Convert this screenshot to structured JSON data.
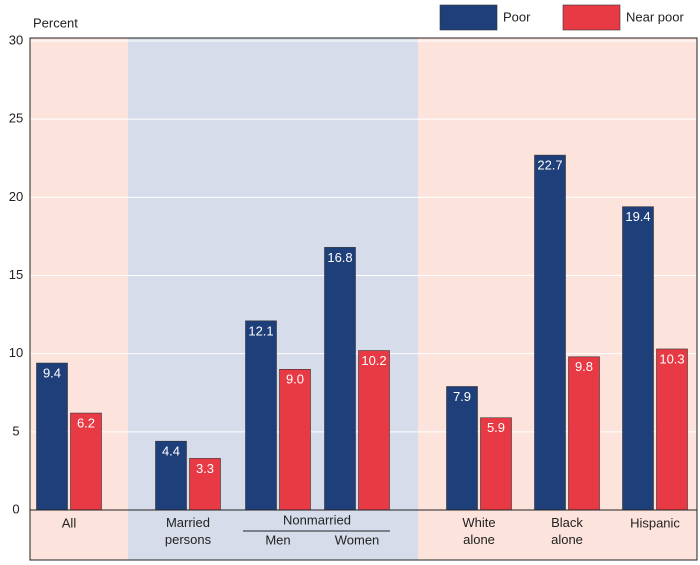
{
  "chart_data": {
    "type": "bar",
    "y_axis_label": "Percent",
    "categories": [
      "All",
      "Married persons",
      "Men",
      "Women",
      "White alone",
      "Black alone",
      "Hispanic"
    ],
    "group_label": "Nonmarried",
    "series": [
      {
        "name": "Poor",
        "color": "#1f3f7a",
        "values": [
          9.4,
          4.4,
          12.1,
          16.8,
          7.9,
          22.7,
          19.4
        ]
      },
      {
        "name": "Near poor",
        "color": "#e83a45",
        "values": [
          6.2,
          3.3,
          9.0,
          10.2,
          5.9,
          9.8,
          10.3
        ],
        "value_labels": [
          "6.2",
          "3.3",
          "9.0",
          "10.2",
          "5.9",
          "9.8",
          "10.3"
        ]
      }
    ],
    "ylim": [
      0,
      30
    ],
    "yticks": [
      0,
      5,
      10,
      15,
      20,
      25,
      30
    ],
    "grid": true,
    "legend": "top-right"
  }
}
